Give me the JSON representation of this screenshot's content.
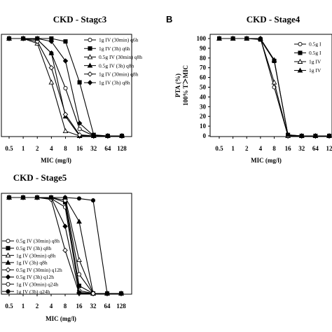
{
  "chart_data": [
    {
      "type": "line",
      "title": "CKD - Stagc3",
      "panel_label": "",
      "xlabel": "MIC (mg/l)",
      "ylabel": "",
      "x": [
        "0.5",
        "1",
        "2",
        "4",
        "8",
        "16",
        "32",
        "64",
        "128"
      ],
      "ylim": [
        0,
        100
      ],
      "legend_position": "right",
      "series": [
        {
          "name": "1g IV (30min) q6h",
          "marker": "open-circle",
          "values": [
            100,
            100,
            99,
            85,
            49,
            7,
            0,
            0,
            0
          ]
        },
        {
          "name": "1g IV (3h) q6h",
          "marker": "filled-square",
          "values": [
            100,
            100,
            100,
            100,
            97,
            55,
            1,
            0,
            0
          ]
        },
        {
          "name": "0.5g IV (30min) q8h",
          "marker": "open-triangle",
          "values": [
            100,
            100,
            95,
            55,
            5,
            0,
            0,
            0,
            0
          ]
        },
        {
          "name": "0.5g IV (3h) q8h",
          "marker": "filled-triangle",
          "values": [
            100,
            100,
            99,
            85,
            20,
            0,
            0,
            0,
            0
          ]
        },
        {
          "name": "1g IV (30min) q8h",
          "marker": "open-diamond",
          "values": [
            100,
            100,
            97,
            70,
            22,
            1,
            0,
            0,
            0
          ]
        },
        {
          "name": "1g IV (3h) q8h",
          "marker": "filled-diamond",
          "values": [
            100,
            100,
            100,
            97,
            77,
            13,
            0,
            0,
            0
          ]
        }
      ]
    },
    {
      "type": "line",
      "title": "CKD - Stage4",
      "panel_label": "B",
      "xlabel": "MIC (mg/l)",
      "ylabel": "PTA (%)",
      "ylabel2": "100% T＞MIC",
      "x": [
        "0.5",
        "1",
        "2",
        "4",
        "8",
        "16",
        "32",
        "64",
        "12"
      ],
      "yticks": [
        0,
        10,
        20,
        30,
        40,
        50,
        60,
        70,
        80,
        90,
        100
      ],
      "ylim": [
        0,
        100
      ],
      "legend_position": "top-right",
      "series": [
        {
          "name": "0.5g I",
          "marker": "open-circle",
          "values": [
            100,
            100,
            100,
            100,
            50,
            0,
            0,
            0,
            0
          ]
        },
        {
          "name": "0.5g I",
          "marker": "filled-square",
          "values": [
            100,
            100,
            100,
            99,
            77,
            1,
            0,
            0,
            0
          ]
        },
        {
          "name": "1g IV",
          "marker": "open-triangle",
          "values": [
            100,
            100,
            100,
            100,
            55,
            0,
            0,
            0,
            0
          ]
        },
        {
          "name": "1g IV",
          "marker": "filled-triangle",
          "values": [
            100,
            100,
            100,
            100,
            78,
            1,
            0,
            0,
            0
          ]
        }
      ]
    },
    {
      "type": "line",
      "title": "CKD - Stage5",
      "panel_label": "",
      "xlabel": "MIC (mg/l)",
      "ylabel": "",
      "x": [
        "0.5",
        "1",
        "2",
        "4",
        "8",
        "16",
        "32",
        "64",
        "128"
      ],
      "ylim": [
        0,
        100
      ],
      "legend_position": "left",
      "series": [
        {
          "name": "0.5g IV (30min) q8h",
          "marker": "open-circle",
          "values": [
            100,
            100,
            100,
            99,
            90,
            3,
            0,
            0,
            0
          ]
        },
        {
          "name": "0.5g IV (3h) q8h",
          "marker": "filled-square",
          "values": [
            100,
            100,
            100,
            100,
            95,
            8,
            0,
            0,
            0
          ]
        },
        {
          "name": "1g IV (30min) q8h",
          "marker": "open-triangle",
          "values": [
            100,
            100,
            100,
            100,
            100,
            35,
            0,
            0,
            0
          ]
        },
        {
          "name": "1g IV (3h) q8h",
          "marker": "filled-triangle",
          "values": [
            100,
            100,
            100,
            100,
            100,
            75,
            0,
            0,
            0
          ]
        },
        {
          "name": "0.5g IV (30min) q12h",
          "marker": "open-diamond",
          "values": [
            100,
            100,
            100,
            98,
            45,
            0,
            0,
            0,
            0
          ]
        },
        {
          "name": "0.5g IV (3h) q12h",
          "marker": "filled-diamond",
          "values": [
            100,
            100,
            100,
            100,
            70,
            1,
            0,
            0,
            0
          ]
        },
        {
          "name": "1g IV (30min) q24h",
          "marker": "open-circle",
          "values": [
            100,
            100,
            100,
            100,
            97,
            20,
            0,
            0,
            0
          ]
        },
        {
          "name": "1g IV (3h) q24h",
          "marker": "filled-circle",
          "values": [
            100,
            100,
            100,
            100,
            100,
            99,
            97,
            0,
            0
          ]
        }
      ]
    }
  ]
}
